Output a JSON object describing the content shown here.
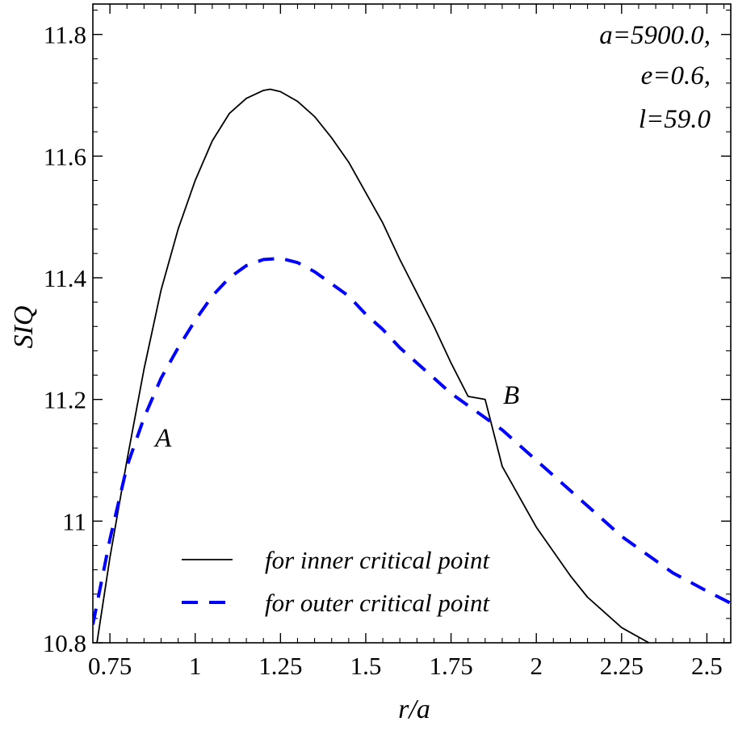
{
  "chart_data": {
    "type": "line",
    "xlabel": "r/a",
    "ylabel": "SIQ",
    "xlim": [
      0.7,
      2.57
    ],
    "ylim": [
      10.8,
      11.85
    ],
    "x_ticks": [
      0.75,
      1,
      1.25,
      1.5,
      1.75,
      2,
      2.25,
      2.5
    ],
    "x_tick_labels": [
      "0.75",
      "1",
      "1.25",
      "1.5",
      "1.75",
      "2",
      "2.25",
      "2.5"
    ],
    "y_ticks": [
      10.8,
      11,
      11.2,
      11.4,
      11.6,
      11.8
    ],
    "y_tick_labels": [
      "10.8",
      "11",
      "11.2",
      "11.4",
      "11.6",
      "11.8"
    ],
    "grid": false,
    "parameters": [
      "a=5900.0,",
      "e=0.6,",
      "l=59.0"
    ],
    "legend_position": "bottom-center",
    "series": [
      {
        "name": "for inner critical point",
        "color": "#000000",
        "style": "solid",
        "points": [
          [
            0.712,
            10.8
          ],
          [
            0.75,
            10.94
          ],
          [
            0.8,
            11.1
          ],
          [
            0.85,
            11.25
          ],
          [
            0.9,
            11.38
          ],
          [
            0.95,
            11.48
          ],
          [
            1.0,
            11.56
          ],
          [
            1.05,
            11.625
          ],
          [
            1.1,
            11.67
          ],
          [
            1.15,
            11.695
          ],
          [
            1.2,
            11.708
          ],
          [
            1.22,
            11.71
          ],
          [
            1.25,
            11.706
          ],
          [
            1.3,
            11.69
          ],
          [
            1.35,
            11.665
          ],
          [
            1.4,
            11.63
          ],
          [
            1.45,
            11.59
          ],
          [
            1.5,
            11.54
          ],
          [
            1.55,
            11.49
          ],
          [
            1.6,
            11.43
          ],
          [
            1.65,
            11.375
          ],
          [
            1.7,
            11.32
          ],
          [
            1.75,
            11.26
          ],
          [
            1.8,
            11.205
          ],
          [
            1.85,
            11.2
          ],
          [
            1.9,
            11.09
          ],
          [
            1.95,
            11.04
          ],
          [
            2.0,
            10.99
          ],
          [
            2.05,
            10.95
          ],
          [
            2.1,
            10.91
          ],
          [
            2.15,
            10.875
          ],
          [
            2.2,
            10.85
          ],
          [
            2.25,
            10.825
          ],
          [
            2.33,
            10.8
          ]
        ]
      },
      {
        "name": "for outer critical point",
        "color": "#0000ff",
        "style": "dashed",
        "points": [
          [
            0.7,
            10.83
          ],
          [
            0.75,
            10.97
          ],
          [
            0.8,
            11.09
          ],
          [
            0.85,
            11.17
          ],
          [
            0.9,
            11.235
          ],
          [
            0.95,
            11.285
          ],
          [
            1.0,
            11.33
          ],
          [
            1.05,
            11.37
          ],
          [
            1.1,
            11.4
          ],
          [
            1.15,
            11.42
          ],
          [
            1.2,
            11.43
          ],
          [
            1.25,
            11.432
          ],
          [
            1.3,
            11.425
          ],
          [
            1.35,
            11.41
          ],
          [
            1.4,
            11.39
          ],
          [
            1.45,
            11.37
          ],
          [
            1.5,
            11.34
          ],
          [
            1.55,
            11.315
          ],
          [
            1.6,
            11.285
          ],
          [
            1.65,
            11.26
          ],
          [
            1.7,
            11.235
          ],
          [
            1.75,
            11.21
          ],
          [
            1.8,
            11.19
          ],
          [
            1.85,
            11.17
          ],
          [
            1.9,
            11.15
          ],
          [
            1.95,
            11.125
          ],
          [
            2.0,
            11.1
          ],
          [
            2.05,
            11.075
          ],
          [
            2.1,
            11.05
          ],
          [
            2.15,
            11.025
          ],
          [
            2.2,
            11.0
          ],
          [
            2.25,
            10.975
          ],
          [
            2.3,
            10.955
          ],
          [
            2.35,
            10.935
          ],
          [
            2.4,
            10.915
          ],
          [
            2.45,
            10.9
          ],
          [
            2.5,
            10.885
          ],
          [
            2.57,
            10.865
          ]
        ]
      }
    ],
    "annotations": [
      {
        "text": "A",
        "x": 0.84,
        "y": 11.12
      },
      {
        "text": "B",
        "x": 1.86,
        "y": 11.19
      }
    ]
  }
}
